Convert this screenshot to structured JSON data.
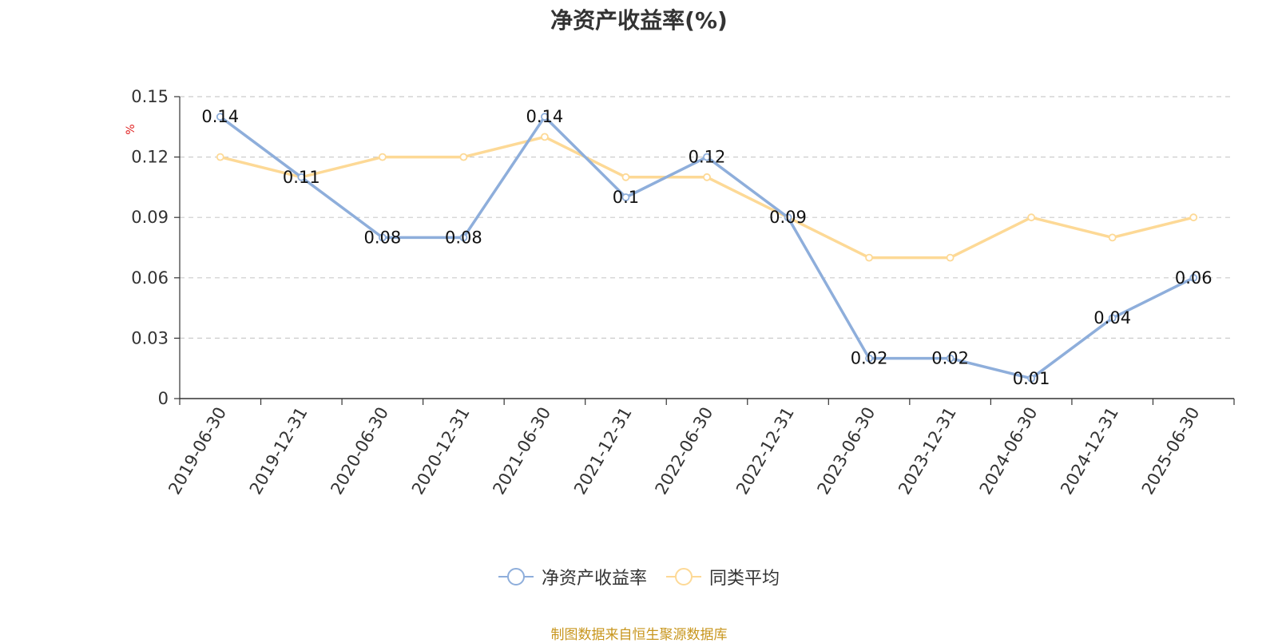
{
  "chart_data": {
    "type": "line",
    "title": "净资产收益率(%)",
    "ylabel": "%",
    "xlabel": "",
    "ylim": [
      0,
      0.15
    ],
    "yticks": [
      "0",
      "0.03",
      "0.06",
      "0.09",
      "0.12",
      "0.15"
    ],
    "grid": true,
    "legend_position": "bottom",
    "categories": [
      "2019-06-30",
      "2019-12-31",
      "2020-06-30",
      "2020-12-31",
      "2021-06-30",
      "2021-12-31",
      "2022-06-30",
      "2022-12-31",
      "2023-06-30",
      "2023-12-31",
      "2024-06-30",
      "2024-12-31",
      "2025-06-30"
    ],
    "series": [
      {
        "name": "净资产收益率",
        "color": "#8eaedb",
        "show_labels": true,
        "values": [
          0.14,
          0.11,
          0.08,
          0.08,
          0.14,
          0.1,
          0.12,
          0.09,
          0.02,
          0.02,
          0.01,
          0.04,
          0.06
        ]
      },
      {
        "name": "同类平均",
        "color": "#fdd996",
        "show_labels": false,
        "values": [
          0.12,
          0.11,
          0.12,
          0.12,
          0.13,
          0.11,
          0.11,
          0.09,
          0.07,
          0.07,
          0.09,
          0.08,
          0.09
        ]
      }
    ]
  },
  "footer": {
    "source": "制图数据来自恒生聚源数据库"
  },
  "colors": {
    "title": "#333333",
    "axis": "#333333",
    "grid": "#cccccc",
    "unit": "#e02020",
    "footer": "#c8961e"
  }
}
